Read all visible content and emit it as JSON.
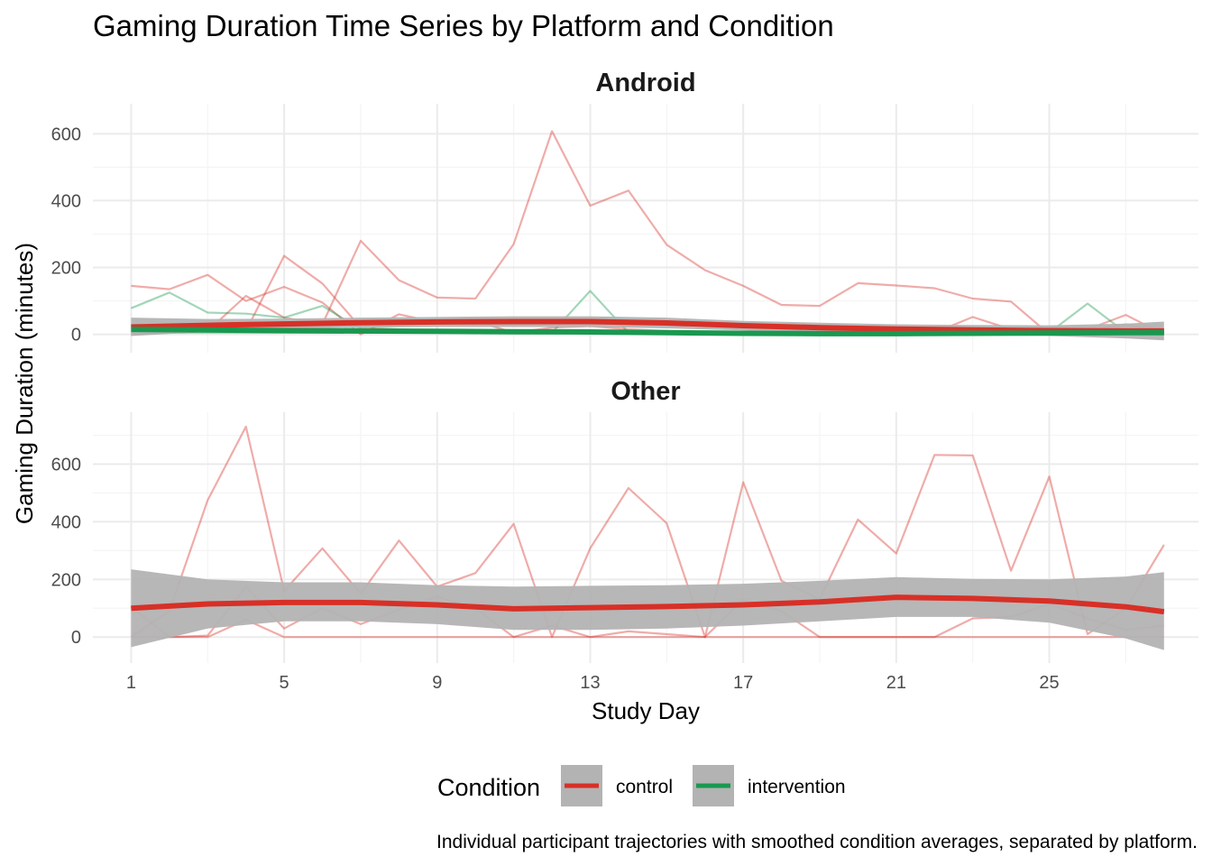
{
  "chart_data": {
    "type": "line",
    "title": "Gaming Duration Time Series by Platform and Condition",
    "xlabel": "Study Day",
    "ylabel": "Gaming Duration (minutes)",
    "caption": "Individual participant trajectories with smoothed condition averages, separated by platform.",
    "x_ticks": [
      1,
      5,
      9,
      13,
      17,
      21,
      25
    ],
    "xlim": [
      0.0,
      28.9
    ],
    "grid": true,
    "legend": {
      "title": "Condition",
      "position": "bottom",
      "entries": [
        {
          "label": "control",
          "color": "#d73027"
        },
        {
          "label": "intervention",
          "color": "#1a9850"
        }
      ]
    },
    "colors": {
      "control": "#d73027",
      "intervention": "#1a9850",
      "ribbon": "#b3b3b3"
    },
    "facets": [
      {
        "name": "Android",
        "ylim": [
          -55,
          690
        ],
        "y_ticks": [
          0,
          200,
          400,
          600
        ],
        "participants": [
          {
            "condition": "control",
            "x": [
              1,
              2,
              3,
              4,
              5,
              6,
              7,
              8,
              9,
              10,
              11,
              12,
              13,
              14,
              15,
              16,
              17,
              18,
              19,
              20,
              21,
              22,
              23,
              24,
              25,
              26,
              27,
              28
            ],
            "y": [
              145,
              135,
              178,
              100,
              142,
              95,
              0,
              60,
              35,
              40,
              5,
              20,
              25,
              15,
              10,
              5,
              5,
              5,
              5,
              5,
              5,
              5,
              52,
              15,
              5,
              15,
              58,
              0
            ]
          },
          {
            "condition": "control",
            "x": [
              1,
              2,
              3,
              4,
              5,
              6,
              7,
              8,
              9,
              10,
              11,
              12,
              13,
              14,
              15,
              16,
              17,
              18,
              19,
              20,
              21,
              22,
              23,
              24,
              25,
              26,
              27,
              28
            ],
            "y": [
              0,
              5,
              10,
              115,
              50,
              30,
              280,
              162,
              110,
              107,
              270,
              608,
              385,
              430,
              268,
              192,
              145,
              88,
              85,
              153,
              146,
              138,
              107,
              98,
              0,
              10,
              30,
              5
            ]
          },
          {
            "condition": "control",
            "x": [
              1,
              2,
              3,
              4,
              5,
              6,
              7,
              8,
              9,
              10,
              11,
              12,
              13,
              14,
              15,
              16,
              17,
              18,
              19,
              20,
              21,
              22,
              23,
              24,
              25,
              26,
              27,
              28
            ],
            "y": [
              0,
              5,
              10,
              10,
              235,
              152,
              20,
              15,
              10,
              10,
              5,
              5,
              5,
              5,
              5,
              5,
              5,
              5,
              5,
              5,
              5,
              5,
              5,
              5,
              5,
              5,
              5,
              0
            ]
          },
          {
            "condition": "intervention",
            "x": [
              1,
              2,
              3,
              4,
              5,
              6,
              7,
              8,
              9,
              10,
              11,
              12,
              13,
              14,
              15,
              16,
              17,
              18,
              19,
              20,
              21,
              22,
              23,
              24,
              25,
              26,
              27,
              28
            ],
            "y": [
              78,
              125,
              65,
              62,
              50,
              85,
              15,
              10,
              5,
              5,
              5,
              5,
              130,
              5,
              5,
              5,
              5,
              5,
              5,
              5,
              5,
              5,
              5,
              5,
              5,
              92,
              5,
              5
            ]
          },
          {
            "condition": "intervention",
            "x": [
              1,
              2,
              3,
              4,
              5,
              6,
              7,
              8,
              9,
              10,
              11,
              12,
              13,
              14,
              15,
              16,
              17,
              18,
              19,
              20,
              21,
              22,
              23,
              24,
              25,
              26,
              27,
              28
            ],
            "y": [
              5,
              5,
              5,
              5,
              5,
              5,
              5,
              5,
              5,
              5,
              5,
              5,
              5,
              5,
              5,
              5,
              5,
              5,
              5,
              5,
              5,
              5,
              5,
              5,
              5,
              5,
              5,
              5
            ]
          }
        ],
        "smooth": [
          {
            "condition": "control",
            "x": [
              1,
              3,
              5,
              7,
              9,
              11,
              13,
              15,
              17,
              19,
              21,
              23,
              25,
              27,
              28
            ],
            "y": [
              22,
              27,
              31,
              35,
              37,
              38,
              38,
              34,
              26,
              20,
              16,
              13,
              11,
              10,
              10
            ],
            "lower": [
              -5,
              8,
              15,
              20,
              22,
              22,
              22,
              18,
              12,
              5,
              2,
              -2,
              -5,
              -12,
              -18
            ],
            "upper": [
              50,
              46,
              47,
              50,
              52,
              54,
              54,
              50,
              40,
              35,
              30,
              28,
              27,
              32,
              38
            ]
          },
          {
            "condition": "intervention",
            "x": [
              1,
              3,
              5,
              7,
              9,
              11,
              13,
              15,
              17,
              19,
              21,
              23,
              25,
              27,
              28
            ],
            "y": [
              15,
              13,
              11,
              10,
              9,
              8,
              7,
              5,
              3,
              2,
              2,
              3,
              4,
              5,
              5
            ]
          }
        ]
      },
      {
        "name": "Other",
        "ylim": [
          -90,
          780
        ],
        "y_ticks": [
          0,
          200,
          400,
          600
        ],
        "participants": [
          {
            "condition": "control",
            "x": [
              1,
              2,
              3,
              4,
              5,
              6,
              7,
              8,
              9,
              10,
              11,
              12,
              13,
              14,
              15,
              16,
              17,
              18,
              19,
              20,
              21,
              22,
              23,
              24,
              25,
              26,
              27,
              28
            ],
            "y": [
              0,
              90,
              475,
              730,
              160,
              308,
              150,
              335,
              175,
              222,
              393,
              0,
              308,
              517,
              395,
              0,
              537,
              195,
              132,
              408,
              290,
              632,
              630,
              230,
              557,
              10,
              100,
              320
            ]
          },
          {
            "condition": "control",
            "x": [
              1,
              2,
              3,
              4,
              5,
              6,
              7,
              8,
              9,
              10,
              11,
              12,
              13,
              14,
              15,
              16,
              17,
              18,
              19,
              20,
              21,
              22,
              23,
              24,
              25,
              26,
              27,
              28
            ],
            "y": [
              105,
              0,
              5,
              175,
              30,
              100,
              45,
              95,
              140,
              100,
              0,
              40,
              0,
              20,
              10,
              0,
              130,
              90,
              0,
              0,
              0,
              0,
              65,
              70,
              115,
              65,
              25,
              40
            ]
          },
          {
            "condition": "control",
            "x": [
              1,
              2,
              3,
              4,
              5,
              6,
              7,
              8,
              9,
              10,
              11,
              12,
              13,
              14,
              15,
              16,
              17,
              18,
              19,
              20,
              21,
              22,
              23,
              24,
              25,
              26,
              27,
              28
            ],
            "y": [
              0,
              0,
              0,
              60,
              0,
              0,
              0,
              0,
              0,
              0,
              0,
              0,
              0,
              0,
              0,
              0,
              0,
              0,
              0,
              0,
              0,
              0,
              0,
              0,
              0,
              0,
              0,
              0
            ]
          }
        ],
        "smooth": [
          {
            "condition": "control",
            "x": [
              1,
              3,
              5,
              7,
              9,
              11,
              13,
              15,
              17,
              19,
              21,
              23,
              25,
              27,
              28
            ],
            "y": [
              100,
              115,
              120,
              120,
              112,
              98,
              102,
              106,
              112,
              122,
              138,
              134,
              125,
              105,
              88
            ],
            "lower": [
              -35,
              30,
              55,
              55,
              45,
              25,
              25,
              30,
              40,
              55,
              70,
              70,
              50,
              -5,
              -45
            ],
            "upper": [
              235,
              200,
              190,
              190,
              180,
              175,
              178,
              180,
              185,
              195,
              208,
              202,
              200,
              210,
              225
            ]
          }
        ]
      }
    ]
  }
}
